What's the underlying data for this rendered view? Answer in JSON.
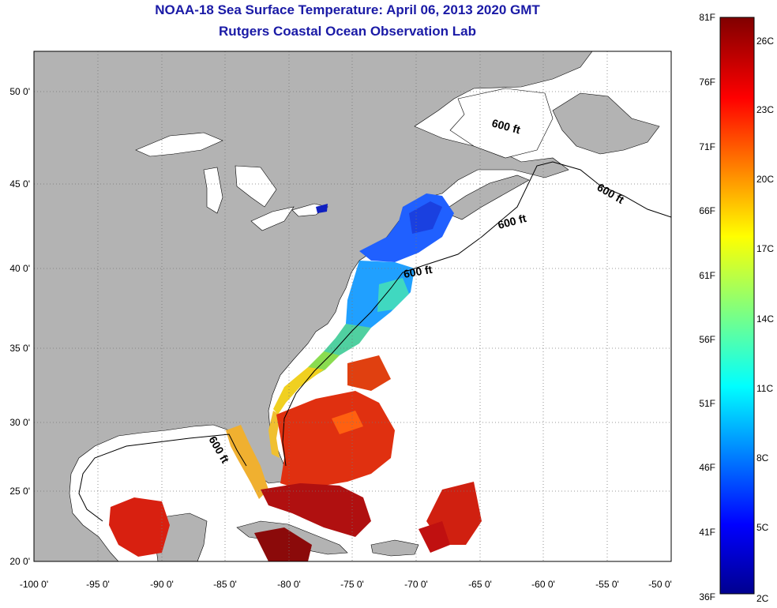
{
  "title": "NOAA-18 Sea Surface Temperature:  April 06, 2013 2020 GMT",
  "subtitle": "Rutgers Coastal Ocean Observation Lab",
  "map": {
    "lon_ticks": [
      "-100 0'",
      "-95 0'",
      "-90 0'",
      "-85 0'",
      "-80 0'",
      "-75 0'",
      "-70 0'",
      "-65 0'",
      "-60 0'",
      "-55 0'",
      "-50 0'"
    ],
    "lat_ticks": [
      "20 0'",
      "25 0'",
      "30 0'",
      "35 0'",
      "40 0'",
      "45 0'",
      "50 0'"
    ],
    "depth_labels": [
      "600 ft",
      "600 ft",
      "600 ft",
      "600 ft",
      "600 ft"
    ],
    "land_color": "#b3b3b3",
    "ocean_color": "#ffffff"
  },
  "colorbar": {
    "fahrenheit": [
      "81F",
      "76F",
      "71F",
      "66F",
      "61F",
      "56F",
      "51F",
      "46F",
      "41F",
      "36F"
    ],
    "celsius": [
      "26C",
      "23C",
      "20C",
      "17C",
      "14C",
      "11C",
      "8C",
      "5C",
      "2C"
    ]
  }
}
